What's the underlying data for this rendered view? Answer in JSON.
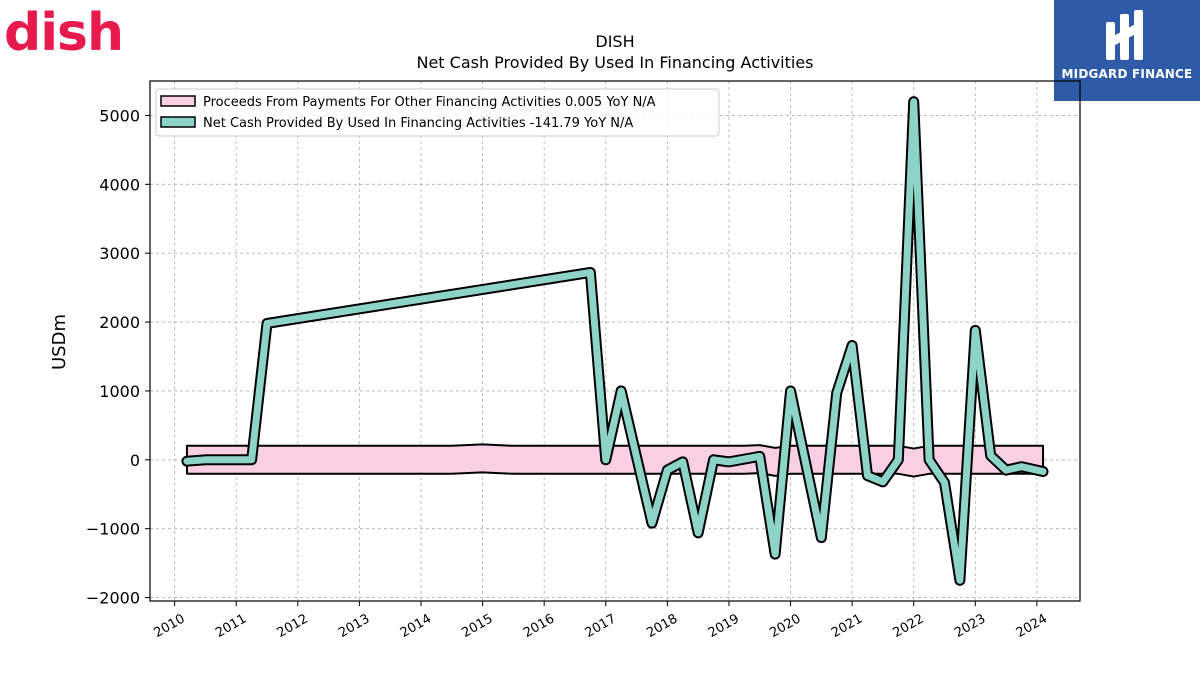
{
  "logos": {
    "left_brand": "dish",
    "right_brand": "MIDGARD FINANCE",
    "left_color": "#e8194d",
    "right_bg": "#2f5aa8"
  },
  "chart_data": {
    "type": "line",
    "title": "DISH",
    "subtitle": "Net Cash Provided By Used In Financing Activities",
    "xlabel": "",
    "ylabel": "USDm",
    "xlim": [
      2009.6,
      2024.7
    ],
    "ylim": [
      -2050,
      5500
    ],
    "x_ticks": [
      "2010",
      "2011",
      "2012",
      "2013",
      "2014",
      "2015",
      "2016",
      "2017",
      "2018",
      "2019",
      "2020",
      "2021",
      "2022",
      "2023",
      "2024"
    ],
    "y_ticks": [
      -2000,
      -1000,
      0,
      1000,
      2000,
      3000,
      4000,
      5000
    ],
    "y_tick_labels": [
      "−2000",
      "−1000",
      "0",
      "1000",
      "2000",
      "3000",
      "4000",
      "5000"
    ],
    "grid": true,
    "legend_position": "top-left",
    "series": [
      {
        "name": "Proceeds From Payments For Other Financing Activities  0.005 YoY N/A",
        "color": "#f9cfe3",
        "x": [
          2010.2,
          2010.5,
          2010.75,
          2011.0,
          2011.25,
          2011.5,
          2012.0,
          2012.5,
          2013.0,
          2013.5,
          2014.0,
          2014.5,
          2015.0,
          2015.5,
          2016.0,
          2016.5,
          2017.0,
          2017.5,
          2018.0,
          2018.5,
          2019.0,
          2019.25,
          2019.5,
          2019.75,
          2020.0,
          2020.5,
          2021.0,
          2021.5,
          2021.75,
          2022.0,
          2022.25,
          2022.5,
          2022.75,
          2023.0,
          2023.5,
          2024.1
        ],
        "values": [
          0,
          0,
          0,
          0,
          0,
          0,
          0,
          0,
          0,
          0,
          0,
          0,
          20,
          0,
          0,
          0,
          0,
          0,
          0,
          0,
          0,
          0,
          10,
          -30,
          0,
          0,
          0,
          0,
          0,
          -40,
          0,
          0,
          0,
          0,
          0,
          0
        ]
      },
      {
        "name": "Net Cash Provided By Used In Financing Activities  -141.79 YoY N/A",
        "color": "#8dd3c7",
        "x": [
          2010.2,
          2010.5,
          2010.75,
          2011.0,
          2011.25,
          2011.5,
          2016.75,
          2017.0,
          2017.25,
          2017.75,
          2018.0,
          2018.25,
          2018.5,
          2018.75,
          2019.0,
          2019.5,
          2019.75,
          2020.0,
          2020.5,
          2020.75,
          2021.0,
          2021.25,
          2021.5,
          2021.75,
          2022.0,
          2022.25,
          2022.5,
          2022.75,
          2023.0,
          2023.25,
          2023.5,
          2023.75,
          2024.1
        ],
        "values": [
          -20,
          0,
          0,
          0,
          0,
          1980,
          2720,
          0,
          1000,
          -920,
          -150,
          -30,
          -1060,
          0,
          -30,
          50,
          -1370,
          1000,
          -1130,
          970,
          1660,
          -230,
          -320,
          0,
          5200,
          0,
          -330,
          -1750,
          1880,
          60,
          -150,
          -100,
          -170
        ]
      }
    ]
  }
}
